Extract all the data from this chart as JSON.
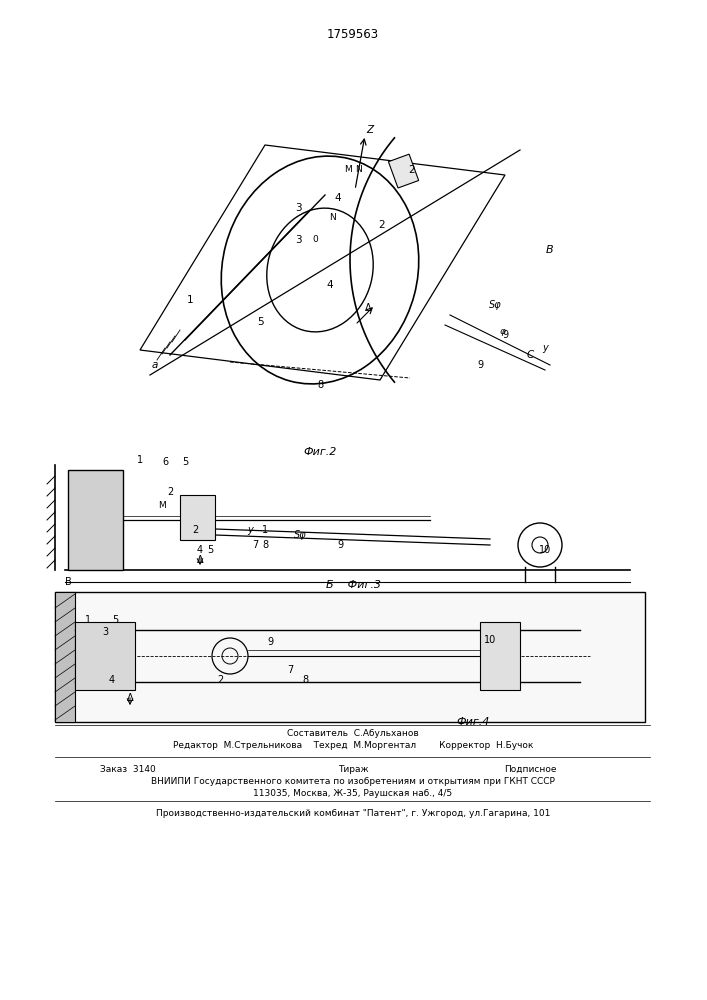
{
  "patent_number": "1759563",
  "background_color": "#f5f5f0",
  "fig_labels": [
    "Фиг.2",
    "Фиг.3",
    "Фиг.4"
  ],
  "footer_lines": [
    "Составитель  С.Абульханов",
    "Редактор  М.Стрельникова    Техред  М.Моргентал        Корректор  Н.Бучок",
    "",
    "Заказ  3140                    Тираж                           Подписное",
    "   ВНИИПИ Государственного комитета по изобретениям и открытиям при ГКНТ СССР",
    "              113035, Москва, Ж-35, Раушская наб., 4/5",
    "",
    "Производственно-издательский комбинат \"Патент\", г. Ужгород, ул.Гагарина, 101"
  ],
  "page_width": 7.07,
  "page_height": 10.0
}
